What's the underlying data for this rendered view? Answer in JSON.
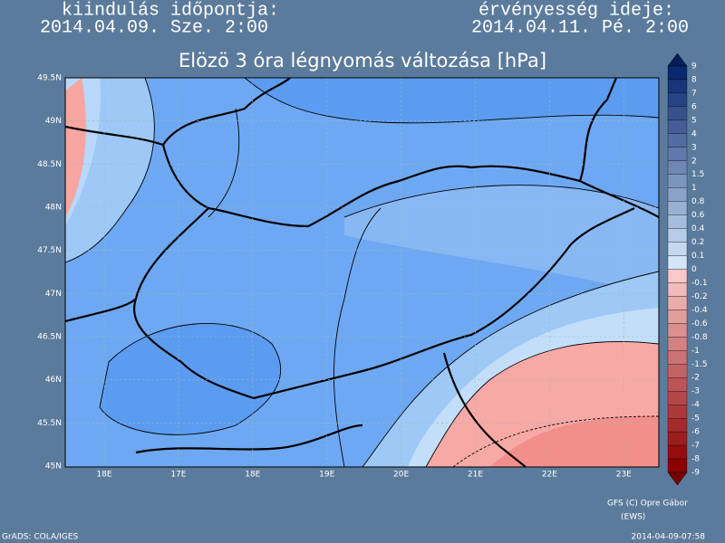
{
  "header": {
    "start_label": "kiindulás időpontja:",
    "start_time": "2014.04.09. Sze. 2:00",
    "valid_label": "érvényesség ideje:",
    "valid_time": "2014.04.11. Pé. 2:00"
  },
  "title": "Elözö 3 óra légnyomás változása [hPa]",
  "map": {
    "lat_labels": [
      "49.5N",
      "49N",
      "48.5N",
      "48N",
      "47.5N",
      "47N",
      "46.5N",
      "46N",
      "45.5N",
      "45N"
    ],
    "lon_labels": [
      "18E",
      "17E",
      "18E",
      "19E",
      "20E",
      "21E",
      "22E",
      "23E"
    ]
  },
  "colorbar": {
    "labels": [
      "9",
      "8",
      "7",
      "6",
      "5",
      "4",
      "3",
      "2",
      "1.5",
      "1",
      "0.8",
      "0.6",
      "0.4",
      "0.2",
      "0.1",
      "0",
      "-0.1",
      "-0.2",
      "-0.4",
      "-0.6",
      "-0.8",
      "-1",
      "-1.5",
      "-2",
      "-3",
      "-4",
      "-5",
      "-6",
      "-7",
      "-8",
      "-9"
    ]
  },
  "footer": {
    "credit": "GFS (C) Opre Gábor",
    "credit2": "(EWS)",
    "grads": "GrADS: COLA/IGES",
    "timestamp": "2014-04-09-07:58"
  }
}
